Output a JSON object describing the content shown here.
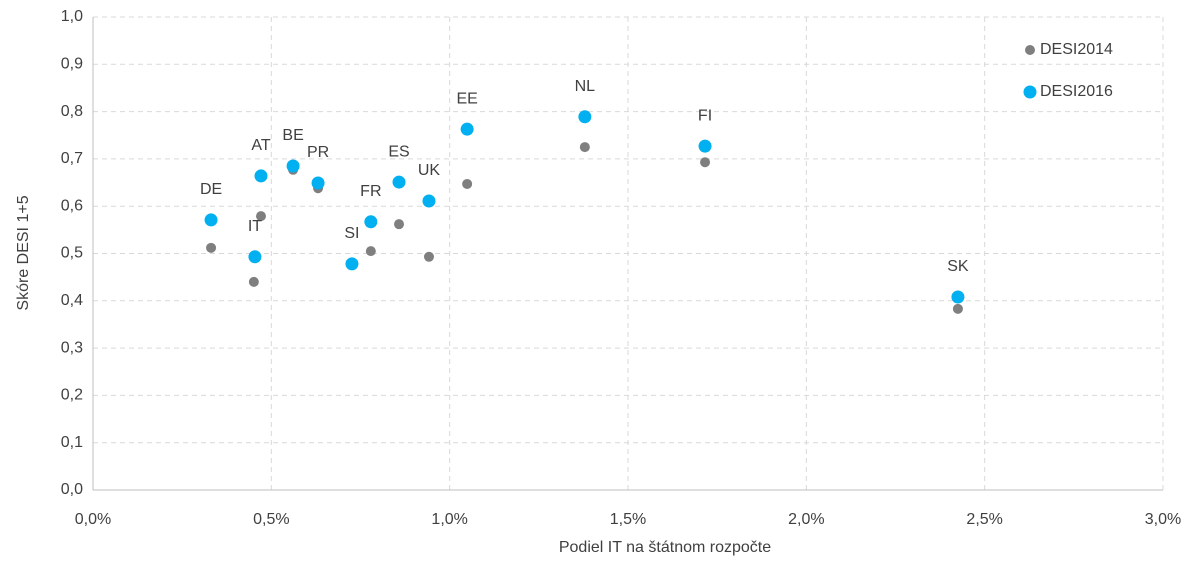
{
  "chart_data": {
    "type": "scatter",
    "xlabel": "Podiel IT na štátnom rozpočte",
    "ylabel": "Skóre DESI 1+5",
    "xlim": [
      0,
      3
    ],
    "ylim": [
      0,
      1
    ],
    "xticks": [
      {
        "value": 0,
        "label": "0,0%"
      },
      {
        "value": 0.5,
        "label": "0,5%"
      },
      {
        "value": 1,
        "label": "1,0%"
      },
      {
        "value": 1.5,
        "label": "1,5%"
      },
      {
        "value": 2,
        "label": "2,0%"
      },
      {
        "value": 2.5,
        "label": "2,5%"
      },
      {
        "value": 3,
        "label": "3,0%"
      }
    ],
    "yticks": [
      {
        "value": 0,
        "label": "0,0"
      },
      {
        "value": 0.1,
        "label": "0,1"
      },
      {
        "value": 0.2,
        "label": "0,2"
      },
      {
        "value": 0.3,
        "label": "0,3"
      },
      {
        "value": 0.4,
        "label": "0,4"
      },
      {
        "value": 0.5,
        "label": "0,5"
      },
      {
        "value": 0.6,
        "label": "0,6"
      },
      {
        "value": 0.7,
        "label": "0,7"
      },
      {
        "value": 0.8,
        "label": "0,8"
      },
      {
        "value": 0.9,
        "label": "0,9"
      },
      {
        "value": 1,
        "label": "1,0"
      }
    ],
    "grid": true,
    "legend": "top-right",
    "series": [
      {
        "name": "DESI2014",
        "color": "#7f7f7f",
        "x": [
          0.331,
          0.451,
          0.471,
          0.561,
          0.631,
          0.779,
          0.858,
          0.942,
          1.049,
          1.379,
          1.716,
          2.425
        ],
        "values": [
          0.512,
          0.44,
          0.579,
          0.677,
          0.638,
          0.505,
          0.562,
          0.493,
          0.647,
          0.725,
          0.693,
          0.383
        ]
      },
      {
        "name": "DESI2016",
        "color": "#00b0f0",
        "x": [
          0.331,
          0.454,
          0.471,
          0.561,
          0.631,
          0.726,
          0.779,
          0.858,
          0.942,
          1.049,
          1.379,
          1.716,
          2.425
        ],
        "values": [
          0.571,
          0.493,
          0.664,
          0.685,
          0.649,
          0.478,
          0.567,
          0.651,
          0.611,
          0.763,
          0.789,
          0.727,
          0.408
        ],
        "labels": [
          "DE",
          "IT",
          "AT",
          "BE",
          "PR",
          "SI",
          "FR",
          "ES",
          "UK",
          "EE",
          "NL",
          "FI",
          "SK"
        ]
      }
    ]
  }
}
